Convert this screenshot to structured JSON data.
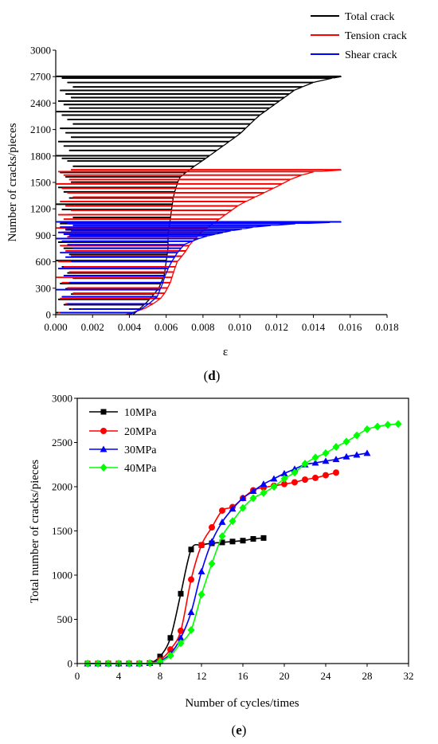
{
  "charts": [
    {
      "panel_label_prefix": "(",
      "panel_letter": "d",
      "panel_label_suffix": ")",
      "chart_data": {
        "type": "line",
        "xlabel": "ε",
        "ylabel": "Number of cracks/pieces",
        "xlim": [
          0.0,
          0.018
        ],
        "ylim": [
          0,
          3000
        ],
        "x_ticks": [
          "0.000",
          "0.002",
          "0.004",
          "0.006",
          "0.008",
          "0.010",
          "0.012",
          "0.014",
          "0.016",
          "0.018"
        ],
        "y_ticks": [
          "0",
          "300",
          "600",
          "900",
          "1200",
          "1500",
          "1800",
          "2100",
          "2400",
          "2700",
          "3000"
        ],
        "legend_position": "top-right outside",
        "series": [
          {
            "name": "Total crack",
            "color": "#000000",
            "envelope": [
              [
                0.0042,
                0
              ],
              [
                0.005,
                150
              ],
              [
                0.0056,
                300
              ],
              [
                0.0059,
                450
              ],
              [
                0.006,
                600
              ],
              [
                0.0061,
                750
              ],
              [
                0.0061,
                900
              ],
              [
                0.0062,
                1050
              ],
              [
                0.0063,
                1200
              ],
              [
                0.0064,
                1350
              ],
              [
                0.0067,
                1550
              ],
              [
                0.0073,
                1650
              ],
              [
                0.008,
                1750
              ],
              [
                0.009,
                1900
              ],
              [
                0.01,
                2050
              ],
              [
                0.011,
                2250
              ],
              [
                0.012,
                2400
              ],
              [
                0.013,
                2550
              ],
              [
                0.0142,
                2650
              ],
              [
                0.0155,
                2700
              ]
            ],
            "levels": [
              20,
              60,
              110,
              170,
              230,
              290,
              350,
              410,
              470,
              540,
              610,
              680,
              750,
              820,
              890,
              960,
              1030,
              1100,
              1130,
              1190,
              1250,
              1320,
              1390,
              1440,
              1500,
              1560,
              1610,
              1680,
              1740,
              1770,
              1800,
              1860,
              1910,
              1960,
              2010,
              2060,
              2110,
              2160,
              2210,
              2260,
              2300,
              2340,
              2380,
              2420,
              2460,
              2500,
              2540,
              2580,
              2630,
              2680,
              2700
            ]
          },
          {
            "name": "Tension crack",
            "color": "#ff0000",
            "envelope": [
              [
                0.0038,
                0
              ],
              [
                0.005,
                80
              ],
              [
                0.0058,
                200
              ],
              [
                0.0062,
                350
              ],
              [
                0.0064,
                480
              ],
              [
                0.0066,
                600
              ],
              [
                0.007,
                700
              ],
              [
                0.0073,
                800
              ],
              [
                0.008,
                950
              ],
              [
                0.009,
                1100
              ],
              [
                0.01,
                1250
              ],
              [
                0.011,
                1350
              ],
              [
                0.012,
                1450
              ],
              [
                0.013,
                1560
              ],
              [
                0.014,
                1620
              ],
              [
                0.0155,
                1640
              ]
            ],
            "levels": [
              20,
              60,
              120,
              180,
              240,
              300,
              360,
              420,
              480,
              540,
              600,
              660,
              720,
              780,
              830,
              880,
              930,
              980,
              1030,
              1080,
              1130,
              1180,
              1230,
              1280,
              1330,
              1380,
              1430,
              1480,
              1530,
              1580,
              1620,
              1640
            ]
          },
          {
            "name": "Shear crack",
            "color": "#0000ff",
            "envelope": [
              [
                0.004,
                0
              ],
              [
                0.0048,
                80
              ],
              [
                0.0055,
                200
              ],
              [
                0.0058,
                350
              ],
              [
                0.006,
                480
              ],
              [
                0.0063,
                600
              ],
              [
                0.0066,
                700
              ],
              [
                0.007,
                800
              ],
              [
                0.008,
                880
              ],
              [
                0.0095,
                950
              ],
              [
                0.011,
                1000
              ],
              [
                0.013,
                1030
              ],
              [
                0.0155,
                1050
              ]
            ],
            "levels": [
              20,
              60,
              120,
              200,
              280,
              360,
              440,
              520,
              600,
              650,
              700,
              750,
              790,
              830,
              860,
              890,
              910,
              930,
              950,
              970,
              990,
              1010,
              1030,
              1045,
              1050
            ]
          }
        ]
      }
    },
    {
      "panel_label_prefix": "(",
      "panel_letter": "e",
      "panel_label_suffix": ")",
      "chart_data": {
        "type": "line",
        "xlabel": "Number of cycles/times",
        "ylabel": "Total number of cracks/pieces",
        "xlim": [
          0,
          32
        ],
        "ylim": [
          0,
          3000
        ],
        "x_ticks": [
          "0",
          "4",
          "8",
          "12",
          "16",
          "20",
          "24",
          "28",
          "32"
        ],
        "y_ticks": [
          "0",
          "500",
          "1000",
          "1500",
          "2000",
          "2500",
          "3000"
        ],
        "legend_position": "top-left",
        "series": [
          {
            "name": "10MPa",
            "color": "#000000",
            "marker": "square",
            "x": [
              1,
              2,
              3,
              4,
              5,
              6,
              7,
              8,
              9,
              10,
              11,
              12,
              13,
              14,
              15,
              16,
              17,
              18
            ],
            "y": [
              0,
              0,
              0,
              0,
              0,
              0,
              5,
              80,
              290,
              790,
              1290,
              1340,
              1360,
              1370,
              1380,
              1390,
              1410,
              1420
            ]
          },
          {
            "name": "20MPa",
            "color": "#ff0000",
            "marker": "circle",
            "x": [
              1,
              2,
              3,
              4,
              5,
              6,
              7,
              8,
              9,
              10,
              11,
              12,
              13,
              14,
              15,
              16,
              17,
              18,
              19,
              20,
              21,
              22,
              23,
              24,
              25
            ],
            "y": [
              0,
              0,
              0,
              0,
              0,
              0,
              5,
              40,
              160,
              370,
              950,
              1340,
              1540,
              1730,
              1770,
              1870,
              1960,
              1990,
              2010,
              2030,
              2050,
              2080,
              2100,
              2130,
              2160
            ]
          },
          {
            "name": "30MPa",
            "color": "#0000ff",
            "marker": "triangle",
            "x": [
              1,
              2,
              3,
              4,
              5,
              6,
              7,
              8,
              9,
              10,
              11,
              12,
              13,
              14,
              15,
              16,
              17,
              18,
              19,
              20,
              21,
              22,
              23,
              24,
              25,
              26,
              27,
              28
            ],
            "y": [
              0,
              0,
              0,
              0,
              0,
              0,
              5,
              30,
              110,
              290,
              580,
              1040,
              1380,
              1600,
              1750,
              1870,
              1950,
              2030,
              2090,
              2150,
              2200,
              2250,
              2270,
              2290,
              2310,
              2340,
              2360,
              2380
            ]
          },
          {
            "name": "40MPa",
            "color": "#00ff00",
            "marker": "diamond",
            "x": [
              1,
              2,
              3,
              4,
              5,
              6,
              7,
              8,
              9,
              10,
              11,
              12,
              13,
              14,
              15,
              16,
              17,
              18,
              19,
              20,
              21,
              22,
              23,
              24,
              25,
              26,
              27,
              28,
              29,
              30,
              31
            ],
            "y": [
              0,
              0,
              0,
              0,
              0,
              0,
              5,
              20,
              90,
              230,
              380,
              780,
              1130,
              1440,
              1610,
              1760,
              1870,
              1930,
              2000,
              2090,
              2160,
              2260,
              2330,
              2380,
              2450,
              2510,
              2580,
              2650,
              2680,
              2700,
              2710
            ]
          }
        ]
      }
    }
  ]
}
